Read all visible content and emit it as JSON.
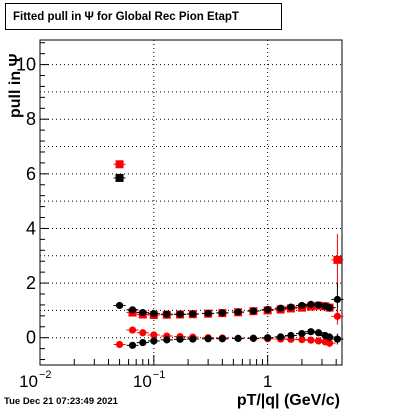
{
  "title": "Fitted pull in Ψ for Global Rec Pion EtapT",
  "timestamp": "Tue Dec 21 07:23:49 2021",
  "chart_data": {
    "type": "scatter",
    "title": "Fitted pull in Ψ for Global Rec Pion EtapT",
    "xlabel": "pT/|q| (GeV/c)",
    "ylabel": "pull in Ψ",
    "xscale": "log",
    "xlim": [
      0.01,
      4.5
    ],
    "ylim": [
      -1.0,
      10.9
    ],
    "grid": true,
    "y_ticks": [
      0,
      2,
      4,
      6,
      8,
      10
    ],
    "y_tick_labels": [
      "0",
      "2",
      "4",
      "6",
      "8",
      "10"
    ],
    "x_ticks": [
      0.01,
      0.1,
      1
    ],
    "x_tick_labels": [
      {
        "base": "10",
        "exp": "−2"
      },
      {
        "base": "10",
        "exp": "−1"
      },
      {
        "base": "1",
        "exp": ""
      }
    ],
    "series": [
      {
        "color": "#000000",
        "marker": "square",
        "x": [
          0.05
        ],
        "y": [
          5.85
        ],
        "yerr": [
          0.12
        ]
      },
      {
        "color": "#ff0000",
        "marker": "square",
        "x": [
          0.05,
          0.065,
          0.08,
          0.1,
          0.13,
          0.17,
          0.22,
          0.3,
          0.4,
          0.55,
          0.75,
          1.0,
          1.3,
          1.6,
          2.0,
          2.4,
          2.8,
          3.2,
          3.5,
          4.1
        ],
        "y": [
          6.35,
          0.92,
          0.85,
          0.83,
          0.84,
          0.85,
          0.86,
          0.88,
          0.9,
          0.93,
          0.97,
          1.0,
          1.03,
          1.07,
          1.1,
          1.14,
          1.17,
          1.15,
          1.1,
          2.85
        ],
        "yerr": [
          0.12,
          0.05,
          0.05,
          0.05,
          0.05,
          0.05,
          0.05,
          0.05,
          0.05,
          0.05,
          0.05,
          0.05,
          0.06,
          0.06,
          0.07,
          0.08,
          0.1,
          0.12,
          0.15,
          0.95
        ]
      },
      {
        "color": "#000000",
        "marker": "circle",
        "x": [
          0.05,
          0.065,
          0.08,
          0.1,
          0.13,
          0.17,
          0.22,
          0.3,
          0.4,
          0.55,
          0.75,
          1.0,
          1.3,
          1.6,
          2.0,
          2.4,
          2.8,
          3.2,
          3.5,
          4.1
        ],
        "y": [
          1.18,
          1.02,
          0.92,
          0.88,
          0.86,
          0.86,
          0.87,
          0.89,
          0.91,
          0.94,
          0.98,
          1.03,
          1.08,
          1.12,
          1.18,
          1.22,
          1.2,
          1.16,
          1.1,
          1.4
        ],
        "yerr": [
          0.1,
          0.05,
          0.05,
          0.05,
          0.05,
          0.05,
          0.05,
          0.05,
          0.05,
          0.05,
          0.05,
          0.05,
          0.06,
          0.06,
          0.07,
          0.08,
          0.1,
          0.12,
          0.15,
          0.6
        ]
      },
      {
        "color": "#ff0000",
        "marker": "circle",
        "x": [
          0.05,
          0.065,
          0.08,
          0.1,
          0.13,
          0.17,
          0.22,
          0.3,
          0.4,
          0.55,
          0.75,
          1.0,
          1.3,
          1.6,
          2.0,
          2.4,
          2.8,
          3.2,
          3.5,
          4.1
        ],
        "y": [
          -0.25,
          0.28,
          0.18,
          0.1,
          0.06,
          0.04,
          0.02,
          0.0,
          -0.01,
          -0.02,
          -0.03,
          -0.04,
          -0.05,
          -0.06,
          -0.07,
          -0.09,
          -0.12,
          -0.15,
          -0.2,
          0.78
        ],
        "yerr": [
          0.08,
          0.05,
          0.05,
          0.05,
          0.05,
          0.05,
          0.05,
          0.05,
          0.05,
          0.05,
          0.05,
          0.05,
          0.06,
          0.06,
          0.07,
          0.08,
          0.1,
          0.12,
          0.15,
          0.3
        ]
      },
      {
        "color": "#000000",
        "marker": "circle",
        "x": [
          0.065,
          0.08,
          0.1,
          0.13,
          0.17,
          0.22,
          0.3,
          0.4,
          0.55,
          0.75,
          1.0,
          1.3,
          1.6,
          2.0,
          2.4,
          2.8,
          3.2,
          3.5,
          4.1
        ],
        "y": [
          -0.28,
          -0.18,
          -0.12,
          -0.08,
          -0.06,
          -0.05,
          -0.04,
          -0.04,
          -0.03,
          -0.02,
          0.0,
          0.03,
          0.08,
          0.15,
          0.22,
          0.18,
          0.08,
          0.02,
          -0.05
        ],
        "yerr": [
          0.05,
          0.05,
          0.05,
          0.05,
          0.05,
          0.05,
          0.05,
          0.05,
          0.05,
          0.05,
          0.05,
          0.06,
          0.06,
          0.07,
          0.08,
          0.1,
          0.12,
          0.15,
          0.2
        ]
      }
    ]
  }
}
